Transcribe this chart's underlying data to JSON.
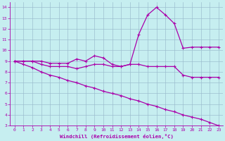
{
  "xlabel": "Windchill (Refroidissement éolien,°C)",
  "bg_color": "#c6eef0",
  "line_color": "#aa00aa",
  "grid_color": "#99bbcc",
  "xlim": [
    -0.5,
    23.5
  ],
  "ylim": [
    3,
    14.5
  ],
  "xticks": [
    0,
    1,
    2,
    3,
    4,
    5,
    6,
    7,
    8,
    9,
    10,
    11,
    12,
    13,
    14,
    15,
    16,
    17,
    18,
    19,
    20,
    21,
    22,
    23
  ],
  "yticks": [
    3,
    4,
    5,
    6,
    7,
    8,
    9,
    10,
    11,
    12,
    13,
    14
  ],
  "series": [
    {
      "x": [
        0,
        1,
        2,
        3,
        4,
        5,
        6,
        7,
        8,
        9,
        10,
        11,
        12,
        13,
        14,
        15,
        16,
        17,
        18,
        19,
        20,
        21,
        22,
        23
      ],
      "y": [
        9,
        9,
        9,
        9,
        8.8,
        8.8,
        8.8,
        9.2,
        9.0,
        9.5,
        9.3,
        8.7,
        8.5,
        8.7,
        11.5,
        13.3,
        14.0,
        13.3,
        12.5,
        10.2,
        10.3,
        10.3,
        10.3,
        10.3
      ]
    },
    {
      "x": [
        0,
        1,
        2,
        3,
        4,
        5,
        6,
        7,
        8,
        9,
        10,
        11,
        12,
        13,
        14,
        15,
        16,
        17,
        18,
        19,
        20,
        21,
        22,
        23
      ],
      "y": [
        9,
        9,
        9,
        8.7,
        8.5,
        8.5,
        8.5,
        8.3,
        8.5,
        8.7,
        8.7,
        8.5,
        8.5,
        8.7,
        8.7,
        8.5,
        8.5,
        8.5,
        8.5,
        7.7,
        7.5,
        7.5,
        7.5,
        7.5
      ]
    },
    {
      "x": [
        0,
        1,
        2,
        3,
        4,
        5,
        6,
        7,
        8,
        9,
        10,
        11,
        12,
        13,
        14,
        15,
        16,
        17,
        18,
        19,
        20,
        21,
        22,
        23
      ],
      "y": [
        9,
        8.7,
        8.4,
        8.0,
        7.7,
        7.5,
        7.2,
        7.0,
        6.7,
        6.5,
        6.2,
        6.0,
        5.8,
        5.5,
        5.3,
        5.0,
        4.8,
        4.5,
        4.3,
        4.0,
        3.8,
        3.6,
        3.3,
        3.0
      ]
    }
  ]
}
